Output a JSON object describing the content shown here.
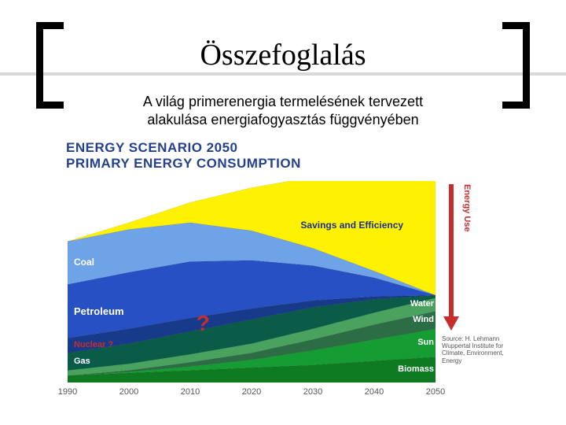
{
  "title": "Összefoglalás",
  "subtitle_line1": "A világ primerenergia termelésének tervezett",
  "subtitle_line2": "alakulása energiafogyasztás függvényében",
  "panel_title_line1": "ENERGY SCENARIO 2050",
  "panel_title_line2": "PRIMARY ENERGY CONSUMPTION",
  "arrow_label": "Energy Use",
  "arrow_color": "#c62e2e",
  "savings_label": "Savings and Efficiency",
  "savings_label_color": "#1a2f8a",
  "source_text": "Source: H. Lehmann Wuppertal Institute for Climate, Environment, Energy",
  "qmark_text": "?",
  "qmark_color": "#c62e2e",
  "qmark_fontsize": 28,
  "chart": {
    "type": "area-stacked",
    "xlim": [
      1990,
      2050
    ],
    "xticks": [
      1990,
      2000,
      2010,
      2020,
      2030,
      2040,
      2050
    ],
    "ylim": [
      0,
      15
    ],
    "background_color": "#ffffff",
    "series_order_bottom_to_top": [
      "biomass",
      "sun",
      "wind",
      "water",
      "gas",
      "nuclear",
      "petroleum",
      "coal",
      "savings"
    ],
    "series": {
      "biomass": {
        "label": "Biomass",
        "color": "#0e7a22",
        "label_color": "#ffffff",
        "values": {
          "1990": 0.5,
          "2000": 0.7,
          "2010": 0.9,
          "2020": 1.1,
          "2030": 1.3,
          "2040": 1.6,
          "2050": 1.9
        }
      },
      "sun": {
        "label": "Sun",
        "color": "#159c33",
        "label_color": "#ffffff",
        "values": {
          "1990": 0.0,
          "2000": 0.1,
          "2010": 0.3,
          "2020": 0.6,
          "2030": 1.1,
          "2040": 1.6,
          "2050": 2.1
        }
      },
      "wind": {
        "label": "Wind",
        "color": "#2d6d45",
        "label_color": "#ffffff",
        "values": {
          "1990": 0.0,
          "2000": 0.1,
          "2010": 0.3,
          "2020": 0.5,
          "2030": 0.8,
          "2040": 1.1,
          "2050": 1.3
        }
      },
      "water": {
        "label": "Water",
        "color": "#4aa25f",
        "label_color": "#ffffff",
        "values": {
          "1990": 0.4,
          "2000": 0.5,
          "2010": 0.6,
          "2020": 0.7,
          "2030": 0.8,
          "2040": 0.9,
          "2050": 1.0
        }
      },
      "gas": {
        "label": "Gas",
        "color": "#0a5c49",
        "label_color": "#ffffff",
        "values": {
          "1990": 1.3,
          "2000": 1.5,
          "2010": 1.7,
          "2020": 1.8,
          "2030": 1.6,
          "2040": 1.0,
          "2050": 0.2
        }
      },
      "nuclear": {
        "label": "Nuclear ?",
        "color": "#173a8a",
        "label_color": "#c62e2e",
        "values": {
          "1990": 1.1,
          "2000": 1.1,
          "2010": 1.0,
          "2020": 0.8,
          "2030": 0.5,
          "2040": 0.2,
          "2050": 0.0
        }
      },
      "petroleum": {
        "label": "Petroleum",
        "color": "#2750c4",
        "label_color": "#ffffff",
        "values": {
          "1990": 4.0,
          "2000": 4.2,
          "2010": 4.2,
          "2020": 3.6,
          "2030": 2.6,
          "2040": 1.4,
          "2050": 0.0
        }
      },
      "coal": {
        "label": "Coal",
        "color": "#6fa3e8",
        "label_color": "#ffffff",
        "values": {
          "1990": 3.2,
          "2000": 3.2,
          "2010": 2.9,
          "2020": 2.2,
          "2030": 1.3,
          "2040": 0.5,
          "2050": 0.0
        }
      },
      "savings": {
        "label": "Savings and Efficiency",
        "color": "#fff200",
        "label_color": "#1a2f8a",
        "values": {
          "1990": 0.0,
          "2000": 0.5,
          "2010": 1.5,
          "2020": 3.2,
          "2030": 5.3,
          "2040": 7.3,
          "2050": 9.0
        }
      }
    }
  }
}
